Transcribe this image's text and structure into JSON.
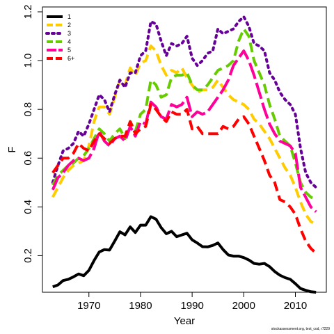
{
  "chart_data": {
    "type": "line",
    "xlabel": "Year",
    "ylabel": "F",
    "xlim": [
      1961,
      2016
    ],
    "ylim": [
      0.05,
      1.22
    ],
    "xticks": [
      1970,
      1980,
      1990,
      2000,
      2010
    ],
    "yticks": [
      0.2,
      0.4,
      0.6,
      0.8,
      1.0,
      1.2
    ],
    "legend_position": "top-left",
    "years": [
      1963,
      1964,
      1965,
      1966,
      1967,
      1968,
      1969,
      1970,
      1971,
      1972,
      1973,
      1974,
      1975,
      1976,
      1977,
      1978,
      1979,
      1980,
      1981,
      1982,
      1983,
      1984,
      1985,
      1986,
      1987,
      1988,
      1989,
      1990,
      1991,
      1992,
      1993,
      1994,
      1995,
      1996,
      1997,
      1998,
      1999,
      2000,
      2001,
      2002,
      2003,
      2004,
      2005,
      2006,
      2007,
      2008,
      2009,
      2010,
      2011,
      2012,
      2013,
      2014
    ],
    "series": [
      {
        "name": "1",
        "color": "#000000",
        "dash": "solid",
        "width": 4,
        "values": [
          0.072,
          0.08,
          0.098,
          0.103,
          0.113,
          0.125,
          0.118,
          0.14,
          0.18,
          0.215,
          0.225,
          0.223,
          0.26,
          0.298,
          0.285,
          0.318,
          0.295,
          0.325,
          0.325,
          0.36,
          0.35,
          0.315,
          0.29,
          0.3,
          0.278,
          0.285,
          0.292,
          0.265,
          0.252,
          0.237,
          0.236,
          0.242,
          0.252,
          0.225,
          0.203,
          0.198,
          0.198,
          0.192,
          0.182,
          0.168,
          0.165,
          0.168,
          0.155,
          0.135,
          0.12,
          0.11,
          0.103,
          0.085,
          0.065,
          0.058,
          0.052,
          0.05
        ]
      },
      {
        "name": "2",
        "color": "#ffcc00",
        "dash": "dashed",
        "width": 4,
        "values": [
          0.44,
          0.48,
          0.52,
          0.55,
          0.57,
          0.58,
          0.59,
          0.65,
          0.75,
          0.81,
          0.81,
          0.78,
          0.85,
          0.92,
          0.9,
          0.97,
          0.94,
          0.99,
          1.0,
          1.06,
          1.04,
          0.98,
          0.94,
          0.96,
          0.95,
          0.97,
          0.93,
          0.9,
          0.87,
          0.88,
          0.88,
          0.89,
          0.92,
          0.89,
          0.86,
          0.84,
          0.83,
          0.82,
          0.8,
          0.76,
          0.74,
          0.71,
          0.68,
          0.64,
          0.6,
          0.56,
          0.53,
          0.48,
          0.42,
          0.37,
          0.34,
          0.33
        ]
      },
      {
        "name": "3",
        "color": "#660099",
        "dash": "dotted",
        "width": 4,
        "values": [
          0.5,
          0.57,
          0.63,
          0.64,
          0.66,
          0.71,
          0.69,
          0.74,
          0.8,
          0.86,
          0.84,
          0.79,
          0.86,
          0.92,
          0.89,
          0.95,
          0.95,
          1.02,
          1.04,
          1.16,
          1.15,
          1.08,
          1.02,
          1.07,
          1.06,
          1.07,
          1.1,
          1.01,
          0.98,
          1.0,
          1.03,
          1.04,
          1.13,
          1.11,
          1.12,
          1.13,
          1.16,
          1.18,
          1.14,
          1.07,
          1.06,
          1.04,
          0.95,
          0.92,
          0.87,
          0.84,
          0.82,
          0.78,
          0.64,
          0.54,
          0.5,
          0.48
        ]
      },
      {
        "name": "4",
        "color": "#66cc00",
        "dash": "dashed",
        "width": 4,
        "values": [
          0.49,
          0.53,
          0.55,
          0.57,
          0.58,
          0.6,
          0.61,
          0.64,
          0.68,
          0.72,
          0.7,
          0.67,
          0.7,
          0.72,
          0.68,
          0.75,
          0.71,
          0.78,
          0.8,
          0.92,
          0.9,
          0.85,
          0.86,
          0.93,
          0.94,
          0.94,
          0.95,
          0.9,
          0.88,
          0.88,
          0.9,
          0.93,
          0.96,
          0.97,
          0.98,
          1.0,
          1.08,
          1.13,
          1.1,
          1.0,
          0.95,
          0.9,
          0.82,
          0.76,
          0.69,
          0.67,
          0.65,
          0.58,
          0.5,
          0.46,
          0.44,
          0.43
        ]
      },
      {
        "name": "5",
        "color": "#ff0099",
        "dash": "longdash",
        "width": 4,
        "values": [
          0.47,
          0.52,
          0.54,
          0.57,
          0.59,
          0.6,
          0.59,
          0.6,
          0.64,
          0.71,
          0.67,
          0.65,
          0.68,
          0.69,
          0.67,
          0.73,
          0.69,
          0.75,
          0.74,
          0.83,
          0.81,
          0.77,
          0.76,
          0.82,
          0.81,
          0.82,
          0.85,
          0.77,
          0.79,
          0.78,
          0.79,
          0.82,
          0.85,
          0.88,
          0.92,
          0.98,
          1.01,
          1.04,
          1.0,
          0.94,
          0.87,
          0.8,
          0.74,
          0.7,
          0.67,
          0.66,
          0.65,
          0.62,
          0.48,
          0.44,
          0.4,
          0.38
        ]
      },
      {
        "name": "6+",
        "color": "#ff0000",
        "dash": "dashed",
        "width": 4,
        "values": [
          0.54,
          0.57,
          0.6,
          0.6,
          0.62,
          0.66,
          0.64,
          0.63,
          0.67,
          0.7,
          0.68,
          0.66,
          0.68,
          0.69,
          0.69,
          0.75,
          0.7,
          0.72,
          0.73,
          0.82,
          0.8,
          0.77,
          0.75,
          0.79,
          0.78,
          0.78,
          0.8,
          0.72,
          0.73,
          0.7,
          0.7,
          0.7,
          0.7,
          0.73,
          0.72,
          0.73,
          0.76,
          0.77,
          0.74,
          0.69,
          0.64,
          0.59,
          0.53,
          0.5,
          0.43,
          0.42,
          0.4,
          0.37,
          0.31,
          0.26,
          0.23,
          0.21
        ]
      }
    ]
  },
  "footnote": "stockassessment.org, test_cod, r7229"
}
